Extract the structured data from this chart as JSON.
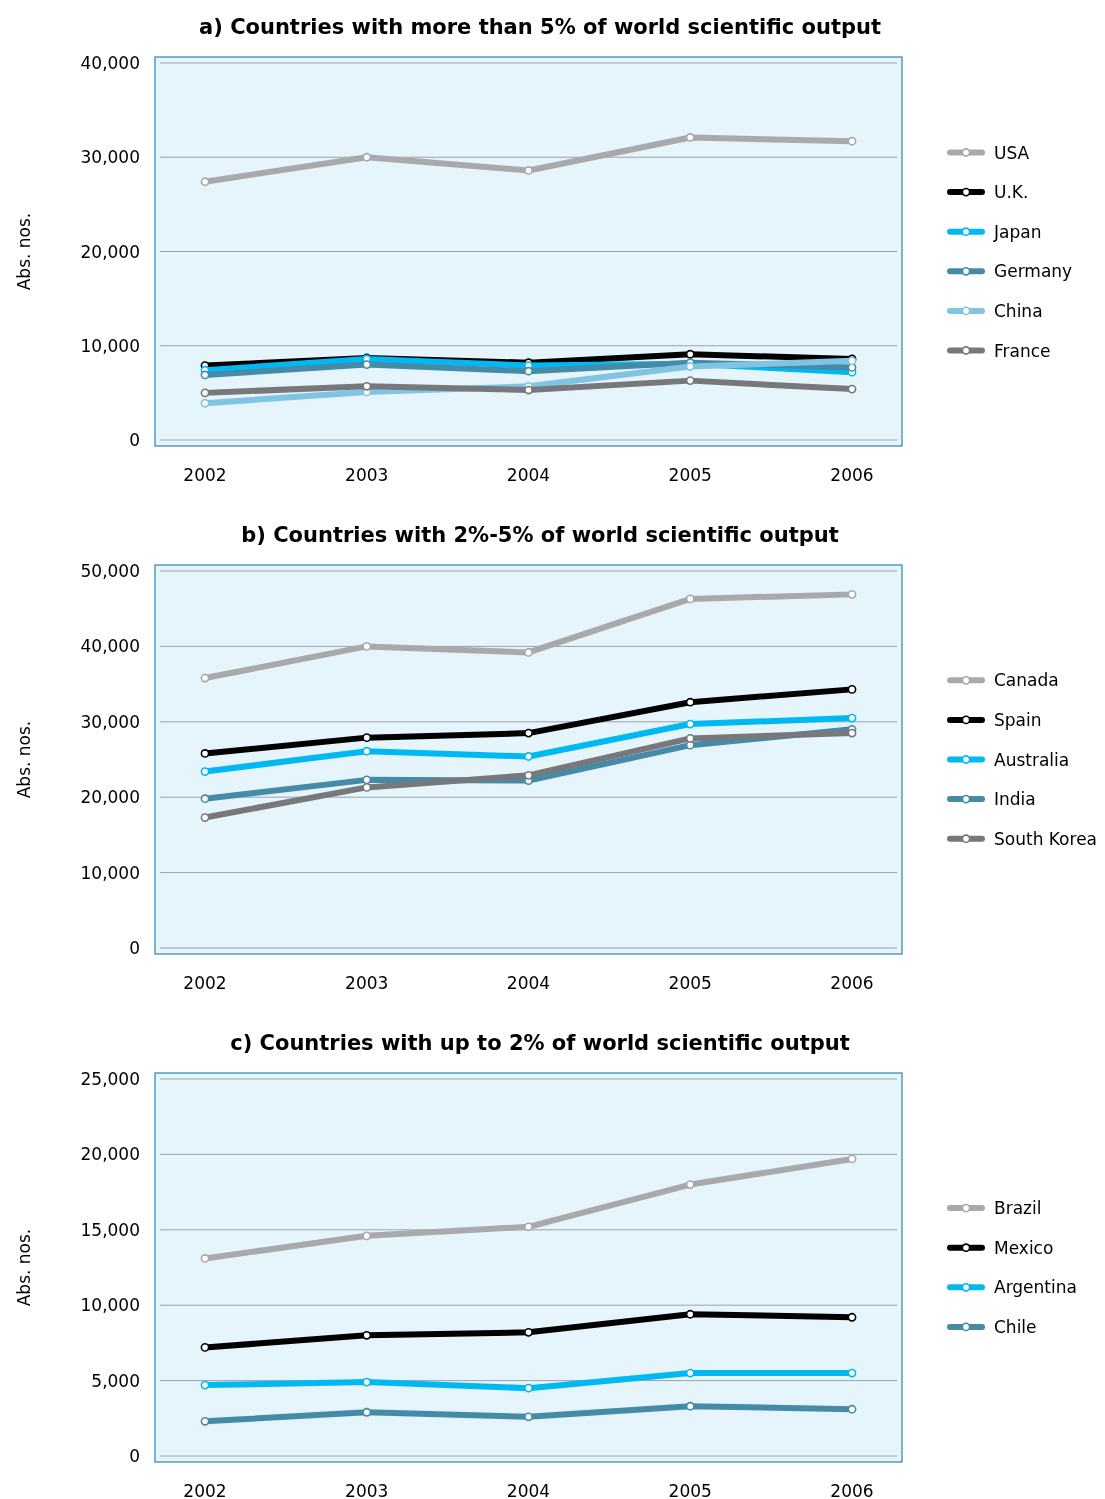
{
  "chart_data": [
    {
      "type": "line",
      "title": "a) Countries with more than 5% of world scientific output",
      "ylabel": "Abs. nos.",
      "categories": [
        "2002",
        "2003",
        "2004",
        "2005",
        "2006"
      ],
      "ylim": [
        0,
        40000
      ],
      "yticks": [
        {
          "value": 0,
          "label": "0"
        },
        {
          "value": 10000,
          "label": "10,000"
        },
        {
          "value": 20000,
          "label": "20,000"
        },
        {
          "value": 30000,
          "label": "30,000"
        },
        {
          "value": 40000,
          "label": "40,000"
        }
      ],
      "grid": "y",
      "legend": "right",
      "marker": "circle",
      "line_style": "solid",
      "series": [
        {
          "name": "USA",
          "color": "#a7a9ac",
          "values": [
            27400,
            30000,
            28600,
            32100,
            31700
          ]
        },
        {
          "name": "U.K.",
          "color": "#000000",
          "values": [
            7900,
            8700,
            8200,
            9100,
            8600
          ]
        },
        {
          "name": "Japan",
          "color": "#00b9f2",
          "values": [
            7400,
            8600,
            7900,
            8100,
            7200
          ]
        },
        {
          "name": "Germany",
          "color": "#458ba8",
          "values": [
            6900,
            8000,
            7300,
            8200,
            7700
          ]
        },
        {
          "name": "China",
          "color": "#7fc4e3",
          "values": [
            3900,
            5100,
            5700,
            7800,
            8400
          ]
        },
        {
          "name": "France",
          "color": "#77787b",
          "values": [
            5000,
            5700,
            5300,
            6300,
            5400
          ]
        }
      ]
    },
    {
      "type": "line",
      "title": "b) Countries with 2%-5% of world scientific output",
      "ylabel": "Abs. nos.",
      "categories": [
        "2002",
        "2003",
        "2004",
        "2005",
        "2006"
      ],
      "ylim": [
        0,
        50000
      ],
      "yticks": [
        {
          "value": 0,
          "label": "0"
        },
        {
          "value": 10000,
          "label": "10,000"
        },
        {
          "value": 20000,
          "label": "20,000"
        },
        {
          "value": 30000,
          "label": "30,000"
        },
        {
          "value": 40000,
          "label": "40,000"
        },
        {
          "value": 50000,
          "label": "50,000"
        }
      ],
      "grid": "y",
      "legend": "right",
      "marker": "circle",
      "line_style": "solid",
      "series": [
        {
          "name": "Canada",
          "color": "#a7a9ac",
          "values": [
            35800,
            40000,
            39200,
            46300,
            46900
          ]
        },
        {
          "name": "Spain",
          "color": "#000000",
          "values": [
            25800,
            27900,
            28500,
            32600,
            34300
          ]
        },
        {
          "name": "Australia",
          "color": "#00b9f2",
          "values": [
            23400,
            26100,
            25400,
            29700,
            30500
          ]
        },
        {
          "name": "India",
          "color": "#458ba8",
          "values": [
            19800,
            22300,
            22200,
            26900,
            29000
          ]
        },
        {
          "name": "South Korea",
          "color": "#77787b",
          "values": [
            17300,
            21300,
            22900,
            27800,
            28500
          ]
        }
      ]
    },
    {
      "type": "line",
      "title": "c) Countries with up to 2% of world scientific output",
      "ylabel": "Abs. nos.",
      "categories": [
        "2002",
        "2003",
        "2004",
        "2005",
        "2006"
      ],
      "ylim": [
        0,
        25000
      ],
      "yticks": [
        {
          "value": 0,
          "label": "0"
        },
        {
          "value": 5000,
          "label": "5,000"
        },
        {
          "value": 10000,
          "label": "10,000"
        },
        {
          "value": 15000,
          "label": "15,000"
        },
        {
          "value": 20000,
          "label": "20,000"
        },
        {
          "value": 25000,
          "label": "25,000"
        }
      ],
      "grid": "y",
      "legend": "right",
      "marker": "circle",
      "line_style": "solid",
      "series": [
        {
          "name": "Brazil",
          "color": "#a7a9ac",
          "values": [
            13100,
            14600,
            15200,
            18000,
            19700
          ]
        },
        {
          "name": "Mexico",
          "color": "#000000",
          "values": [
            7200,
            8000,
            8200,
            9400,
            9200
          ]
        },
        {
          "name": "Argentina",
          "color": "#00b9f2",
          "values": [
            4700,
            4900,
            4500,
            5500,
            5500
          ]
        },
        {
          "name": "Chile",
          "color": "#458ba8",
          "values": [
            2300,
            2900,
            2600,
            3300,
            3100
          ]
        }
      ]
    }
  ]
}
